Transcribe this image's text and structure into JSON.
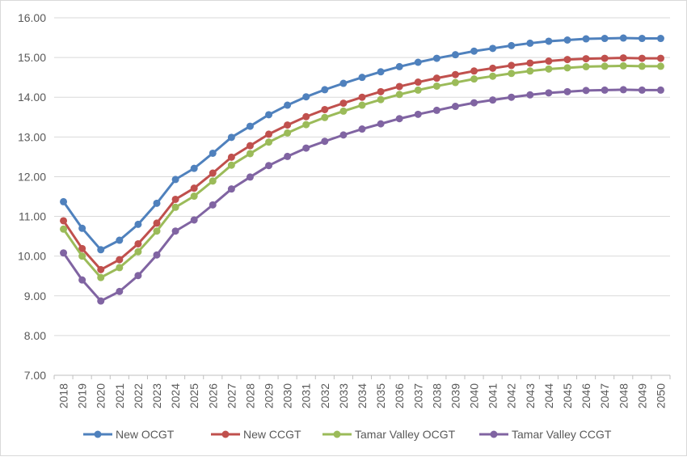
{
  "chart_data": {
    "type": "line",
    "title": "",
    "xlabel": "",
    "ylabel": "",
    "ylim": [
      7.0,
      16.0
    ],
    "y_ticks": [
      "7.00",
      "8.00",
      "9.00",
      "10.00",
      "11.00",
      "12.00",
      "13.00",
      "14.00",
      "15.00",
      "16.00"
    ],
    "grid": "horizontal",
    "legend_position": "bottom",
    "categories": [
      "2018",
      "2019",
      "2020",
      "2021",
      "2022",
      "2023",
      "2024",
      "2025",
      "2026",
      "2027",
      "2028",
      "2029",
      "2030",
      "2031",
      "2032",
      "2033",
      "2034",
      "2035",
      "2036",
      "2037",
      "2038",
      "2039",
      "2040",
      "2041",
      "2042",
      "2043",
      "2044",
      "2045",
      "2046",
      "2047",
      "2048",
      "2049",
      "2050"
    ],
    "series": [
      {
        "name": "New OCGT",
        "color": "#4F81BD",
        "values": [
          11.37,
          10.7,
          10.16,
          10.4,
          10.8,
          11.33,
          11.93,
          12.21,
          12.59,
          12.99,
          13.27,
          13.56,
          13.8,
          14.01,
          14.19,
          14.35,
          14.5,
          14.64,
          14.77,
          14.88,
          14.98,
          15.07,
          15.16,
          15.23,
          15.3,
          15.36,
          15.41,
          15.44,
          15.47,
          15.48,
          15.49,
          15.48,
          15.48
        ]
      },
      {
        "name": "New CCGT",
        "color": "#C0504D",
        "values": [
          10.89,
          10.19,
          9.66,
          9.91,
          10.31,
          10.83,
          11.43,
          11.71,
          12.09,
          12.49,
          12.78,
          13.07,
          13.3,
          13.51,
          13.69,
          13.85,
          14.0,
          14.14,
          14.27,
          14.38,
          14.48,
          14.57,
          14.66,
          14.73,
          14.8,
          14.86,
          14.91,
          14.95,
          14.97,
          14.98,
          14.99,
          14.98,
          14.98
        ]
      },
      {
        "name": "Tamar Valley OCGT",
        "color": "#9BBB59",
        "values": [
          10.68,
          10.0,
          9.46,
          9.71,
          10.11,
          10.63,
          11.23,
          11.51,
          11.89,
          12.29,
          12.58,
          12.87,
          13.1,
          13.31,
          13.49,
          13.65,
          13.8,
          13.94,
          14.07,
          14.18,
          14.28,
          14.37,
          14.46,
          14.53,
          14.6,
          14.66,
          14.71,
          14.74,
          14.77,
          14.78,
          14.79,
          14.78,
          14.78
        ]
      },
      {
        "name": "Tamar Valley CCGT",
        "color": "#8064A2",
        "values": [
          10.08,
          9.4,
          8.87,
          9.11,
          9.51,
          10.03,
          10.63,
          10.91,
          11.29,
          11.69,
          11.99,
          12.28,
          12.51,
          12.72,
          12.89,
          13.05,
          13.2,
          13.33,
          13.46,
          13.57,
          13.67,
          13.77,
          13.86,
          13.93,
          14.0,
          14.06,
          14.11,
          14.14,
          14.17,
          14.18,
          14.19,
          14.18,
          14.18
        ]
      }
    ]
  }
}
